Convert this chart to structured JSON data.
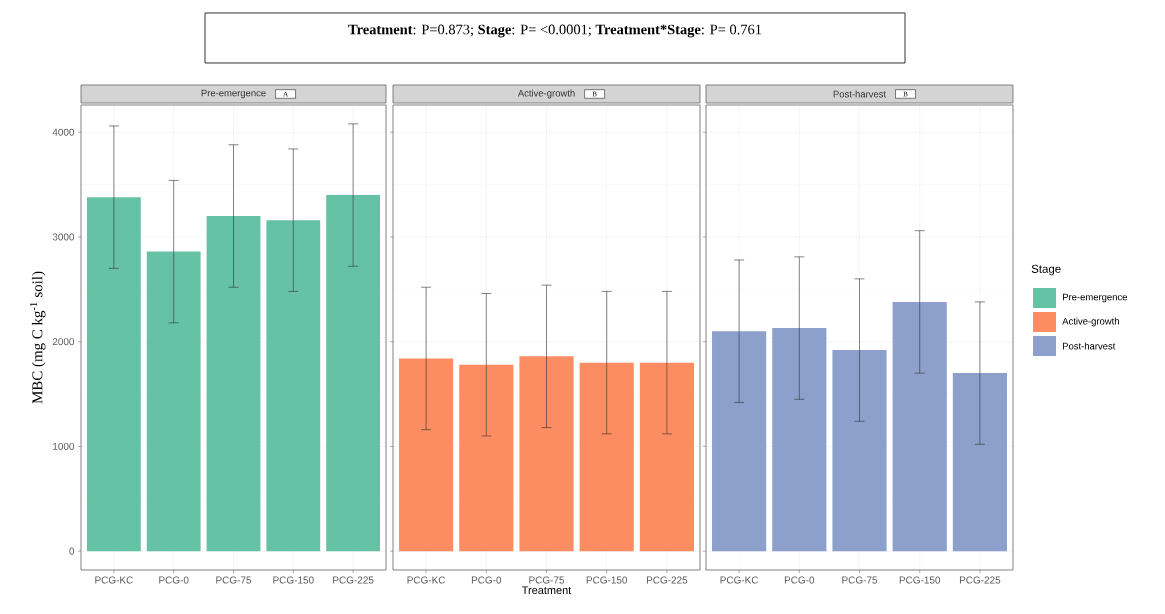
{
  "chart_data": [
    {
      "type": "bar",
      "title": "Pre-emergence",
      "ylabel": "MBC (mg  C kg$^{-1}$ soil)",
      "categories": [
        "PCG-KC",
        "PCG-0",
        "PCG-75",
        "PCG-150",
        "PCG-225"
      ],
      "series": [
        {
          "name": "Pre-emergence",
          "color": "#66c2a5",
          "values": [
            3380,
            2860,
            3200,
            3160,
            3400
          ],
          "errors": [
            680,
            680,
            680,
            680,
            680
          ]
        }
      ],
      "ylim": [
        -180,
        4260
      ],
      "yticks": [
        0,
        1000,
        2000,
        3000,
        4000
      ],
      "grid": true,
      "legend": "right",
      "legend_title": "Stage",
      "annotations": [
        "A"
      ]
    },
    {
      "type": "bar",
      "title": "Active-growth",
      "xlabel": "Treatment",
      "categories": [
        "PCG-KC",
        "PCG-0",
        "PCG-75",
        "PCG-150",
        "PCG-225"
      ],
      "series": [
        {
          "name": "Active-growth",
          "color": "#fc8d62",
          "values": [
            1840,
            1780,
            1860,
            1800,
            1800
          ],
          "errors": [
            680,
            680,
            680,
            680,
            680
          ]
        }
      ],
      "ylim": [
        -180,
        4260
      ],
      "yticks": [
        0,
        1000,
        2000,
        3000,
        4000
      ],
      "tick_labels": "x",
      "grid": true,
      "legend": "right",
      "annotations": [
        "B",
        "**Treatment**: P=0.873; **Stage**: P= <0.0001; **Treatment*Stage**: P= 0.761"
      ]
    },
    {
      "type": "bar",
      "title": "Post-harvest",
      "categories": [
        "PCG-KC",
        "PCG-0",
        "PCG-75",
        "PCG-150",
        "PCG-225"
      ],
      "series": [
        {
          "name": "Post-harvest",
          "color": "#8da0cb",
          "values": [
            2100,
            2130,
            1920,
            2380,
            1700
          ],
          "errors": [
            680,
            680,
            680,
            680,
            680
          ]
        }
      ],
      "ylim": [
        -180,
        4260
      ],
      "yticks": [
        0,
        1000,
        2000,
        3000,
        4000
      ],
      "tick_labels": "x",
      "grid": true,
      "legend": "right",
      "annotations": [
        "B"
      ]
    }
  ]
}
